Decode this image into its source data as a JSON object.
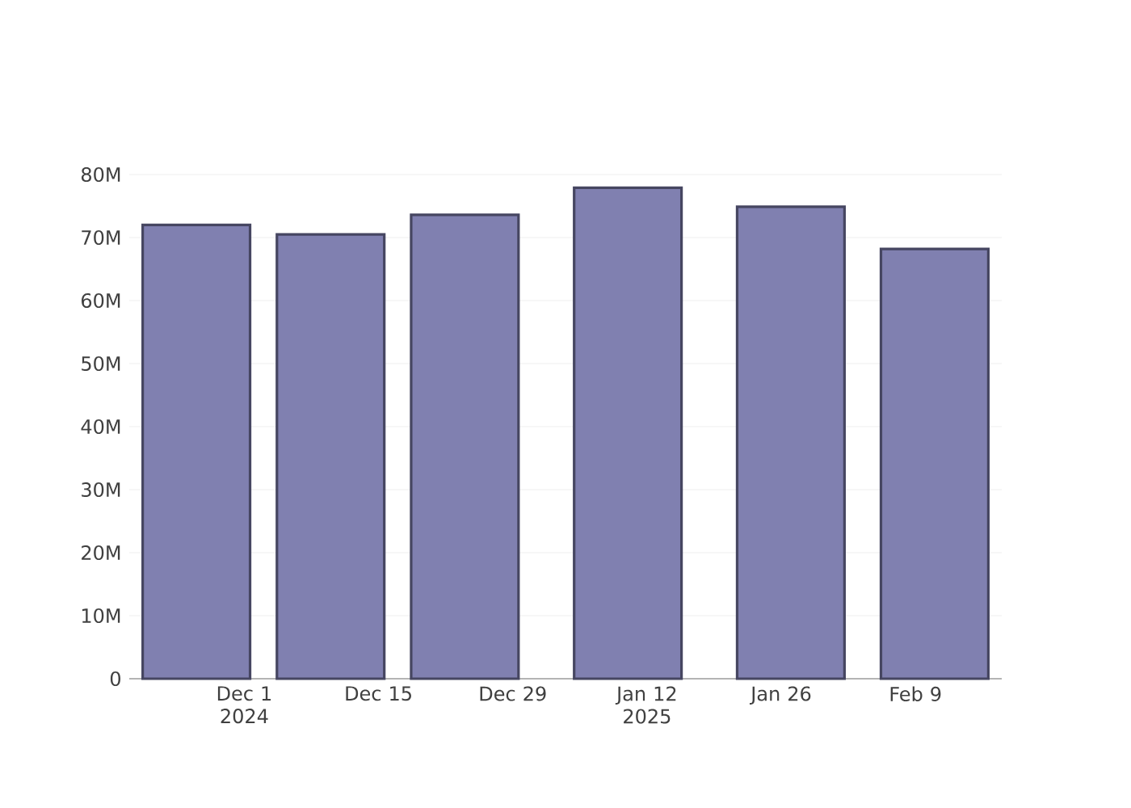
{
  "chart_data": {
    "type": "bar",
    "x": [
      "2024-11-26",
      "2024-12-10",
      "2024-12-24",
      "2025-01-10",
      "2025-01-27",
      "2025-02-11"
    ],
    "values": [
      72000000,
      70500000,
      73600000,
      77900000,
      74900000,
      68200000
    ],
    "color": "#8080b0",
    "xlim": [
      "2024-11-19",
      "2025-02-18"
    ],
    "xticks": [
      {
        "value": "2024-12-01",
        "label": "Dec 1 2024"
      },
      {
        "value": "2024-12-15",
        "label": "Dec 15"
      },
      {
        "value": "2024-12-29",
        "label": "Dec 29"
      },
      {
        "value": "2025-01-12",
        "label": "Jan 12 2025"
      },
      {
        "value": "2025-01-26",
        "label": "Jan 26"
      },
      {
        "value": "2025-02-09",
        "label": "Feb 9"
      }
    ],
    "ylim": [
      0,
      80000000
    ],
    "yticks": [
      0,
      {
        "value": 10000000,
        "label": "10M"
      },
      {
        "value": 20000000,
        "label": "20M"
      },
      {
        "value": 30000000,
        "label": "30M"
      },
      {
        "value": 40000000,
        "label": "40M"
      },
      {
        "value": 50000000,
        "label": "50M"
      },
      {
        "value": 60000000,
        "label": "60M"
      },
      {
        "value": 70000000,
        "label": "70M"
      },
      {
        "value": 80000000,
        "label": "80M"
      }
    ],
    "grid": "y"
  }
}
